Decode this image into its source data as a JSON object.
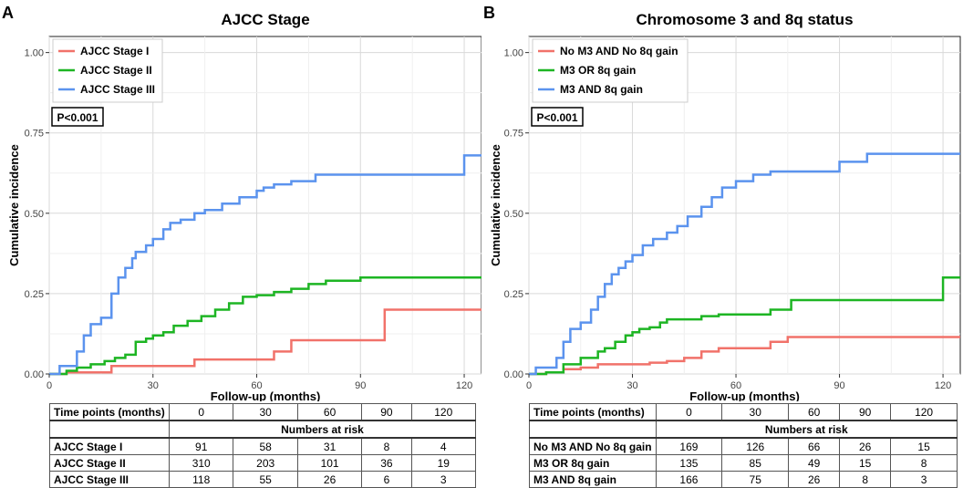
{
  "chart_data": [
    {
      "panel_label": "A",
      "type": "line",
      "step": true,
      "title": "AJCC Stage",
      "xlabel": "Follow-up (months)",
      "ylabel": "Cumulative incidence",
      "xlim": [
        0,
        125
      ],
      "ylim": [
        0,
        1.05
      ],
      "xticks": [
        0,
        30,
        60,
        90,
        120
      ],
      "yticks": [
        0,
        0.25,
        0.5,
        0.75,
        1.0
      ],
      "ytick_labels": [
        "0.00",
        "0.25",
        "0.50",
        "0.75",
        "1.00"
      ],
      "grid": true,
      "legend_position": "top-left",
      "pvalue": "P<0.001",
      "series": [
        {
          "name": "AJCC Stage I",
          "color": "#f1726a",
          "x": [
            0,
            5,
            18,
            30,
            42,
            65,
            70,
            97,
            125
          ],
          "y": [
            0,
            0.005,
            0.025,
            0.025,
            0.045,
            0.07,
            0.105,
            0.2,
            0.2
          ]
        },
        {
          "name": "AJCC Stage II",
          "color": "#1db523",
          "x": [
            0,
            5,
            8,
            12,
            16,
            19,
            22,
            25,
            28,
            30,
            33,
            36,
            40,
            44,
            48,
            52,
            56,
            60,
            65,
            70,
            75,
            80,
            90,
            125
          ],
          "y": [
            0,
            0.01,
            0.02,
            0.03,
            0.04,
            0.05,
            0.06,
            0.1,
            0.11,
            0.12,
            0.13,
            0.15,
            0.165,
            0.18,
            0.2,
            0.22,
            0.24,
            0.245,
            0.255,
            0.265,
            0.28,
            0.29,
            0.3,
            0.3
          ]
        },
        {
          "name": "AJCC Stage III",
          "color": "#5b93ee",
          "x": [
            0,
            3,
            8,
            10,
            12,
            15,
            18,
            20,
            22,
            24,
            25,
            28,
            30,
            33,
            35,
            38,
            42,
            45,
            50,
            55,
            60,
            62,
            65,
            70,
            77,
            90,
            110,
            120,
            125
          ],
          "y": [
            0,
            0.025,
            0.07,
            0.12,
            0.155,
            0.175,
            0.25,
            0.3,
            0.33,
            0.36,
            0.38,
            0.4,
            0.42,
            0.45,
            0.47,
            0.48,
            0.5,
            0.51,
            0.53,
            0.55,
            0.57,
            0.58,
            0.59,
            0.6,
            0.62,
            0.62,
            0.62,
            0.68,
            0.68
          ]
        }
      ],
      "risk_table": {
        "header_label": "Time points (months)",
        "times": [
          "0",
          "30",
          "60",
          "90",
          "120"
        ],
        "subheader": "Numbers at risk",
        "rows": [
          {
            "label": "AJCC Stage I",
            "values": [
              "91",
              "58",
              "31",
              "8",
              "4"
            ]
          },
          {
            "label": "AJCC Stage II",
            "values": [
              "310",
              "203",
              "101",
              "36",
              "19"
            ]
          },
          {
            "label": "AJCC Stage III",
            "values": [
              "118",
              "55",
              "26",
              "6",
              "3"
            ]
          }
        ]
      }
    },
    {
      "panel_label": "B",
      "type": "line",
      "step": true,
      "title": "Chromosome 3 and 8q status",
      "xlabel": "Follow-up (months)",
      "ylabel": "Cumulative incidence",
      "xlim": [
        0,
        125
      ],
      "ylim": [
        0,
        1.05
      ],
      "xticks": [
        0,
        30,
        60,
        90,
        120
      ],
      "yticks": [
        0,
        0.25,
        0.5,
        0.75,
        1.0
      ],
      "ytick_labels": [
        "0.00",
        "0.25",
        "0.50",
        "0.75",
        "1.00"
      ],
      "grid": true,
      "legend_position": "top-left",
      "pvalue": "P<0.001",
      "series": [
        {
          "name": "No M3 AND No 8q gain",
          "color": "#f1726a",
          "x": [
            0,
            5,
            10,
            15,
            20,
            25,
            35,
            40,
            45,
            50,
            55,
            60,
            70,
            75,
            125
          ],
          "y": [
            0,
            0.005,
            0.015,
            0.02,
            0.03,
            0.03,
            0.035,
            0.04,
            0.05,
            0.07,
            0.08,
            0.08,
            0.1,
            0.115,
            0.115
          ]
        },
        {
          "name": "M3 OR 8q gain",
          "color": "#1db523",
          "x": [
            0,
            5,
            10,
            15,
            20,
            22,
            25,
            28,
            30,
            32,
            35,
            38,
            40,
            45,
            50,
            55,
            60,
            70,
            76,
            90,
            120,
            125
          ],
          "y": [
            0,
            0.005,
            0.03,
            0.05,
            0.07,
            0.08,
            0.1,
            0.12,
            0.13,
            0.14,
            0.145,
            0.16,
            0.17,
            0.17,
            0.18,
            0.185,
            0.185,
            0.2,
            0.23,
            0.23,
            0.3,
            0.3
          ]
        },
        {
          "name": "M3 AND 8q gain",
          "color": "#5b93ee",
          "x": [
            0,
            2,
            8,
            10,
            12,
            15,
            18,
            20,
            22,
            24,
            26,
            28,
            30,
            33,
            36,
            40,
            43,
            46,
            50,
            53,
            56,
            60,
            65,
            70,
            75,
            90,
            98,
            125
          ],
          "y": [
            0,
            0.02,
            0.05,
            0.1,
            0.14,
            0.16,
            0.2,
            0.24,
            0.28,
            0.31,
            0.33,
            0.35,
            0.37,
            0.4,
            0.42,
            0.44,
            0.46,
            0.49,
            0.52,
            0.55,
            0.58,
            0.6,
            0.62,
            0.63,
            0.63,
            0.66,
            0.685,
            0.685
          ]
        }
      ],
      "risk_table": {
        "header_label": "Time points (months)",
        "times": [
          "0",
          "30",
          "60",
          "90",
          "120"
        ],
        "subheader": "Numbers at risk",
        "rows": [
          {
            "label": "No M3 AND No 8q gain",
            "values": [
              "169",
              "126",
              "66",
              "26",
              "15"
            ]
          },
          {
            "label": "M3 OR 8q gain",
            "values": [
              "135",
              "85",
              "49",
              "15",
              "8"
            ]
          },
          {
            "label": "M3 AND 8q gain",
            "values": [
              "166",
              "75",
              "26",
              "8",
              "3"
            ]
          }
        ]
      }
    }
  ]
}
